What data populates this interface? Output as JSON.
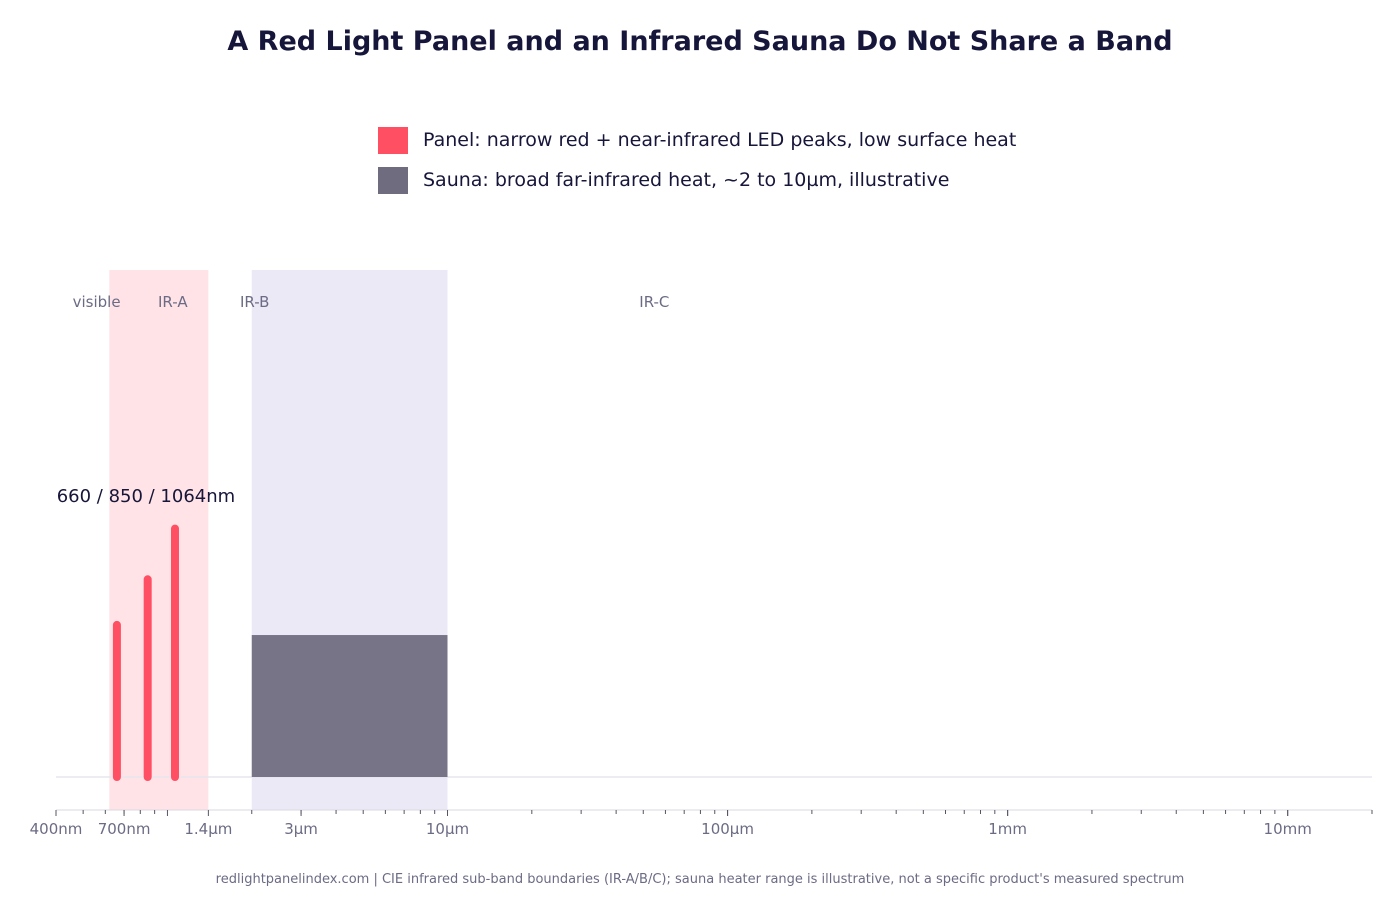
{
  "chart_data": {
    "type": "area",
    "title": "A Red Light Panel and an Infrared Sauna Do Not Share a Band",
    "x_scale": "log",
    "x_unit": "m",
    "xlim": [
      4e-07,
      0.02
    ],
    "x_ticks": [
      {
        "value": 4e-07,
        "label": "400nm"
      },
      {
        "value": 7e-07,
        "label": "700nm"
      },
      {
        "value": 1.4e-06,
        "label": "1.4µm"
      },
      {
        "value": 3e-06,
        "label": "3µm"
      },
      {
        "value": 1e-05,
        "label": "10µm"
      },
      {
        "value": 0.0001,
        "label": "100µm"
      },
      {
        "value": 0.001,
        "label": "1mm"
      },
      {
        "value": 0.01,
        "label": "10mm"
      }
    ],
    "bands": [
      {
        "label": "visible",
        "start": 4e-07,
        "end": 7.8e-07
      },
      {
        "label": "IR-A",
        "start": 7.8e-07,
        "end": 1.4e-06
      },
      {
        "label": "IR-B",
        "start": 1.4e-06,
        "end": 3e-06
      },
      {
        "label": "IR-C",
        "start": 3e-06,
        "end": 0.001
      }
    ],
    "series": [
      {
        "name": "Panel: narrow red + near-infrared LED peaks, low surface heat",
        "color": "#ff4f63",
        "highlight_range": [
          6.2e-07,
          1.4e-06
        ],
        "peaks": [
          {
            "wavelength": 6.6e-07,
            "relative": 0.3
          },
          {
            "wavelength": 8.5e-07,
            "relative": 0.39
          },
          {
            "wavelength": 1.064e-06,
            "relative": 0.49
          }
        ],
        "annotation": "660 / 850 / 1064nm"
      },
      {
        "name": "Sauna: broad far-infrared heat, ~2 to 10µm, illustrative",
        "color": "#777487",
        "highlight_range": [
          2e-06,
          1e-05
        ],
        "band": {
          "start": 2e-06,
          "end": 1e-05,
          "relative": 0.28
        }
      }
    ],
    "legend_position": "top-center",
    "grid": false
  },
  "caption": "redlightpanelindex.com | CIE infrared sub-band boundaries (IR-A/B/C); sauna heater range is illustrative, not a specific product's measured spectrum"
}
